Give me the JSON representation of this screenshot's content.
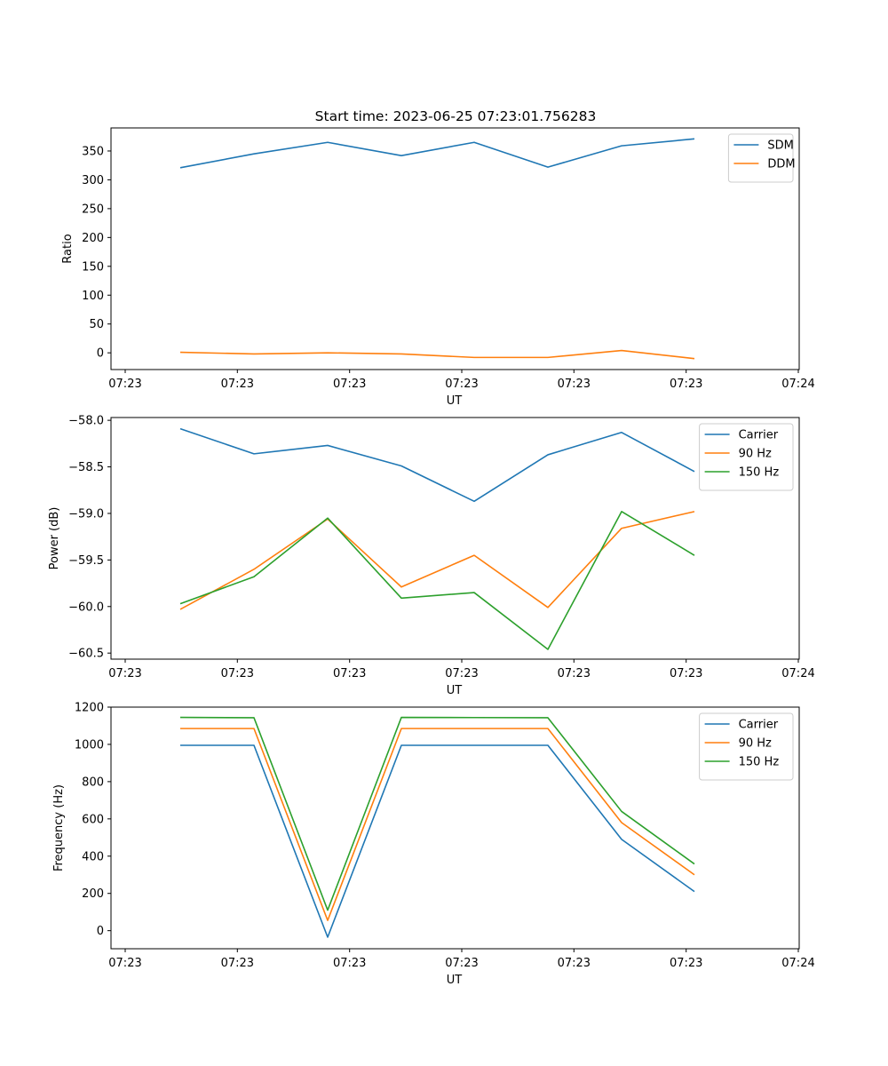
{
  "title": "Start time: 2023-06-25 07:23:01.756283",
  "colors": {
    "blue": "#1f77b4",
    "orange": "#ff7f0e",
    "green": "#2ca02c"
  },
  "chart_data": [
    {
      "type": "line",
      "xlabel": "UT",
      "ylabel": "Ratio",
      "x_tick_labels": [
        "07:23",
        "07:23",
        "07:23",
        "07:23",
        "07:23",
        "07:23",
        "07:24"
      ],
      "y_ticks": [
        0,
        50,
        100,
        150,
        200,
        250,
        300,
        350
      ],
      "y_tick_labels": [
        "0",
        "50",
        "100",
        "150",
        "200",
        "250",
        "300",
        "350"
      ],
      "ylim": [
        -29,
        390
      ],
      "legend": "top-right",
      "series": [
        {
          "name": "SDM",
          "color": "#1f77b4",
          "values": [
            321,
            345,
            365,
            342,
            365,
            322,
            359,
            371
          ]
        },
        {
          "name": "DDM",
          "color": "#ff7f0e",
          "values": [
            1,
            -2,
            0,
            -2,
            -8,
            -8,
            4,
            -10
          ]
        }
      ]
    },
    {
      "type": "line",
      "xlabel": "UT",
      "ylabel": "Power (dB)",
      "x_tick_labels": [
        "07:23",
        "07:23",
        "07:23",
        "07:23",
        "07:23",
        "07:23",
        "07:24"
      ],
      "y_ticks": [
        -60.5,
        -60.0,
        -59.5,
        -59.0,
        -58.5,
        -58.0
      ],
      "y_tick_labels": [
        "−60.5",
        "−60.0",
        "−59.5",
        "−59.0",
        "−58.5",
        "−58.0"
      ],
      "ylim": [
        -60.565,
        -57.97
      ],
      "legend": "top-right",
      "series": [
        {
          "name": "Carrier",
          "color": "#1f77b4",
          "values": [
            -58.09,
            -58.36,
            -58.27,
            -58.49,
            -58.87,
            -58.37,
            -58.13,
            -58.55
          ]
        },
        {
          "name": "90 Hz",
          "color": "#ff7f0e",
          "values": [
            -60.03,
            -59.6,
            -59.06,
            -59.79,
            -59.45,
            -60.01,
            -59.16,
            -58.98
          ]
        },
        {
          "name": "150 Hz",
          "color": "#2ca02c",
          "values": [
            -59.97,
            -59.68,
            -59.05,
            -59.91,
            -59.85,
            -60.46,
            -58.98,
            -59.45
          ]
        }
      ]
    },
    {
      "type": "line",
      "xlabel": "UT",
      "ylabel": "Frequency (Hz)",
      "x_tick_labels": [
        "07:23",
        "07:23",
        "07:23",
        "07:23",
        "07:23",
        "07:23",
        "07:24"
      ],
      "y_ticks": [
        0,
        200,
        400,
        600,
        800,
        1000,
        1200
      ],
      "y_tick_labels": [
        "0",
        "200",
        "400",
        "600",
        "800",
        "1000",
        "1200"
      ],
      "ylim": [
        -97,
        1200
      ],
      "legend": "top-right",
      "series": [
        {
          "name": "Carrier",
          "color": "#1f77b4",
          "values": [
            995,
            995,
            -35,
            995,
            995,
            995,
            490,
            210
          ]
        },
        {
          "name": "90 Hz",
          "color": "#ff7f0e",
          "values": [
            1085,
            1085,
            55,
            1085,
            1085,
            1085,
            580,
            300
          ]
        },
        {
          "name": "150 Hz",
          "color": "#2ca02c",
          "values": [
            1145,
            1143,
            110,
            1145,
            1144,
            1143,
            640,
            358
          ]
        }
      ]
    }
  ]
}
